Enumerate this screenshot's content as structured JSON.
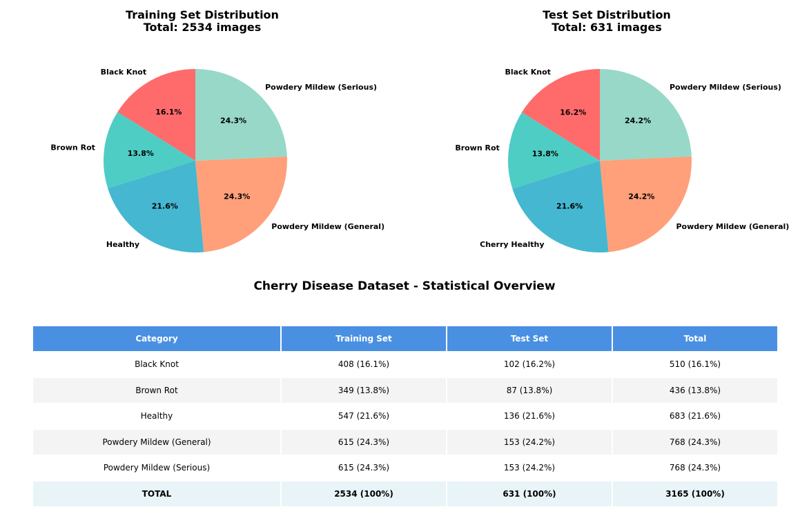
{
  "chart_data": [
    {
      "type": "pie",
      "title": "Training Set Distribution",
      "subtitle": "Total: 2534 images",
      "categories": [
        "Black Knot",
        "Brown Rot",
        "Healthy",
        "Powdery Mildew (General)",
        "Powdery Mildew (Serious)"
      ],
      "values": [
        408,
        349,
        547,
        615,
        615
      ],
      "percent_labels": [
        "16.1%",
        "13.8%",
        "21.6%",
        "24.3%",
        "24.3%"
      ],
      "colors": [
        "#ff6b6b",
        "#4ecdc4",
        "#45b7d1",
        "#ffa07a",
        "#98d8c8"
      ]
    },
    {
      "type": "pie",
      "title": "Test Set Distribution",
      "subtitle": "Total: 631 images",
      "categories": [
        "Black Knot",
        "Brown Rot",
        "Cherry Healthy",
        "Powdery Mildew (General)",
        "Powdery Mildew (Serious)"
      ],
      "values": [
        102,
        87,
        136,
        153,
        153
      ],
      "percent_labels": [
        "16.2%",
        "13.8%",
        "21.6%",
        "24.2%",
        "24.2%"
      ],
      "colors": [
        "#ff6b6b",
        "#4ecdc4",
        "#45b7d1",
        "#ffa07a",
        "#98d8c8"
      ]
    },
    {
      "type": "table",
      "title": "Cherry Disease Dataset - Statistical Overview",
      "columns": [
        "Category",
        "Training Set",
        "Test Set",
        "Total"
      ],
      "rows": [
        [
          "Black Knot",
          "408 (16.1%)",
          "102 (16.2%)",
          "510 (16.1%)"
        ],
        [
          "Brown Rot",
          "349 (13.8%)",
          "87 (13.8%)",
          "436 (13.8%)"
        ],
        [
          "Healthy",
          "547 (21.6%)",
          "136 (21.6%)",
          "683 (21.6%)"
        ],
        [
          "Powdery Mildew (General)",
          "615 (24.3%)",
          "153 (24.2%)",
          "768 (24.3%)"
        ],
        [
          "Powdery Mildew (Serious)",
          "615 (24.3%)",
          "153 (24.2%)",
          "768 (24.3%)"
        ]
      ],
      "total_row": [
        "TOTAL",
        "2534 (100%)",
        "631 (100%)",
        "3165 (100%)"
      ],
      "colors": {
        "header_bg": "#4a90e2",
        "header_text": "#ffffff",
        "stripe": "#f4f4f4",
        "total_bg": "#e8f4f8"
      }
    }
  ]
}
